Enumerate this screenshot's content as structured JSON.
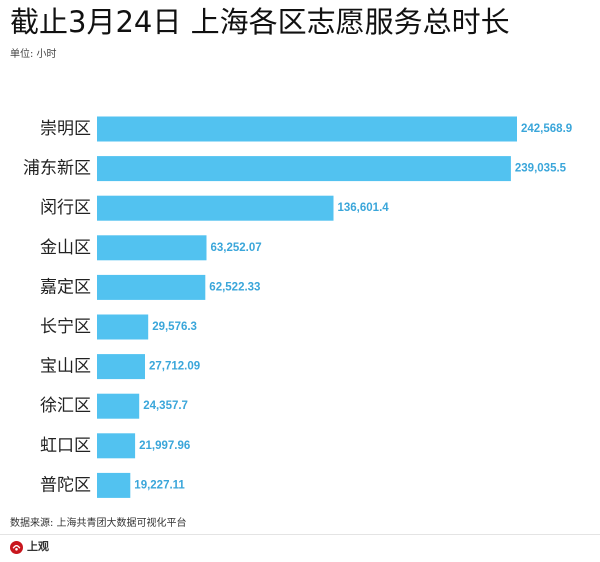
{
  "chart_data": {
    "type": "bar",
    "horizontal": true,
    "title": "截止3月24日 上海各区志愿服务总时长",
    "subtitle": "单位: 小时",
    "categories": [
      "崇明区",
      "浦东新区",
      "闵行区",
      "金山区",
      "嘉定区",
      "长宁区",
      "宝山区",
      "徐汇区",
      "虹口区",
      "普陀区"
    ],
    "values": [
      242568.9,
      239035.5,
      136601.4,
      63252.07,
      62522.33,
      29576.3,
      27712.09,
      24357.7,
      21997.96,
      19227.11
    ],
    "data_labels": [
      "242,568.9",
      "239,035.5",
      "136,601.4",
      "63,252.07",
      "62,522.33",
      "29,576.3",
      "27,712.09",
      "24,357.7",
      "21,997.96",
      "19,227.11"
    ],
    "xlim": [
      0,
      242568.9
    ],
    "grid": false,
    "legend": false,
    "source": "数据来源: 上海共青团大数据可视化平台"
  },
  "colors": {
    "bar": "#52c2f0",
    "data_label": "#3aa6da",
    "logo": "#c8161d"
  },
  "footer": {
    "logo_text": "上观",
    "logo_icon": "shanghai-observer-logo-icon"
  }
}
